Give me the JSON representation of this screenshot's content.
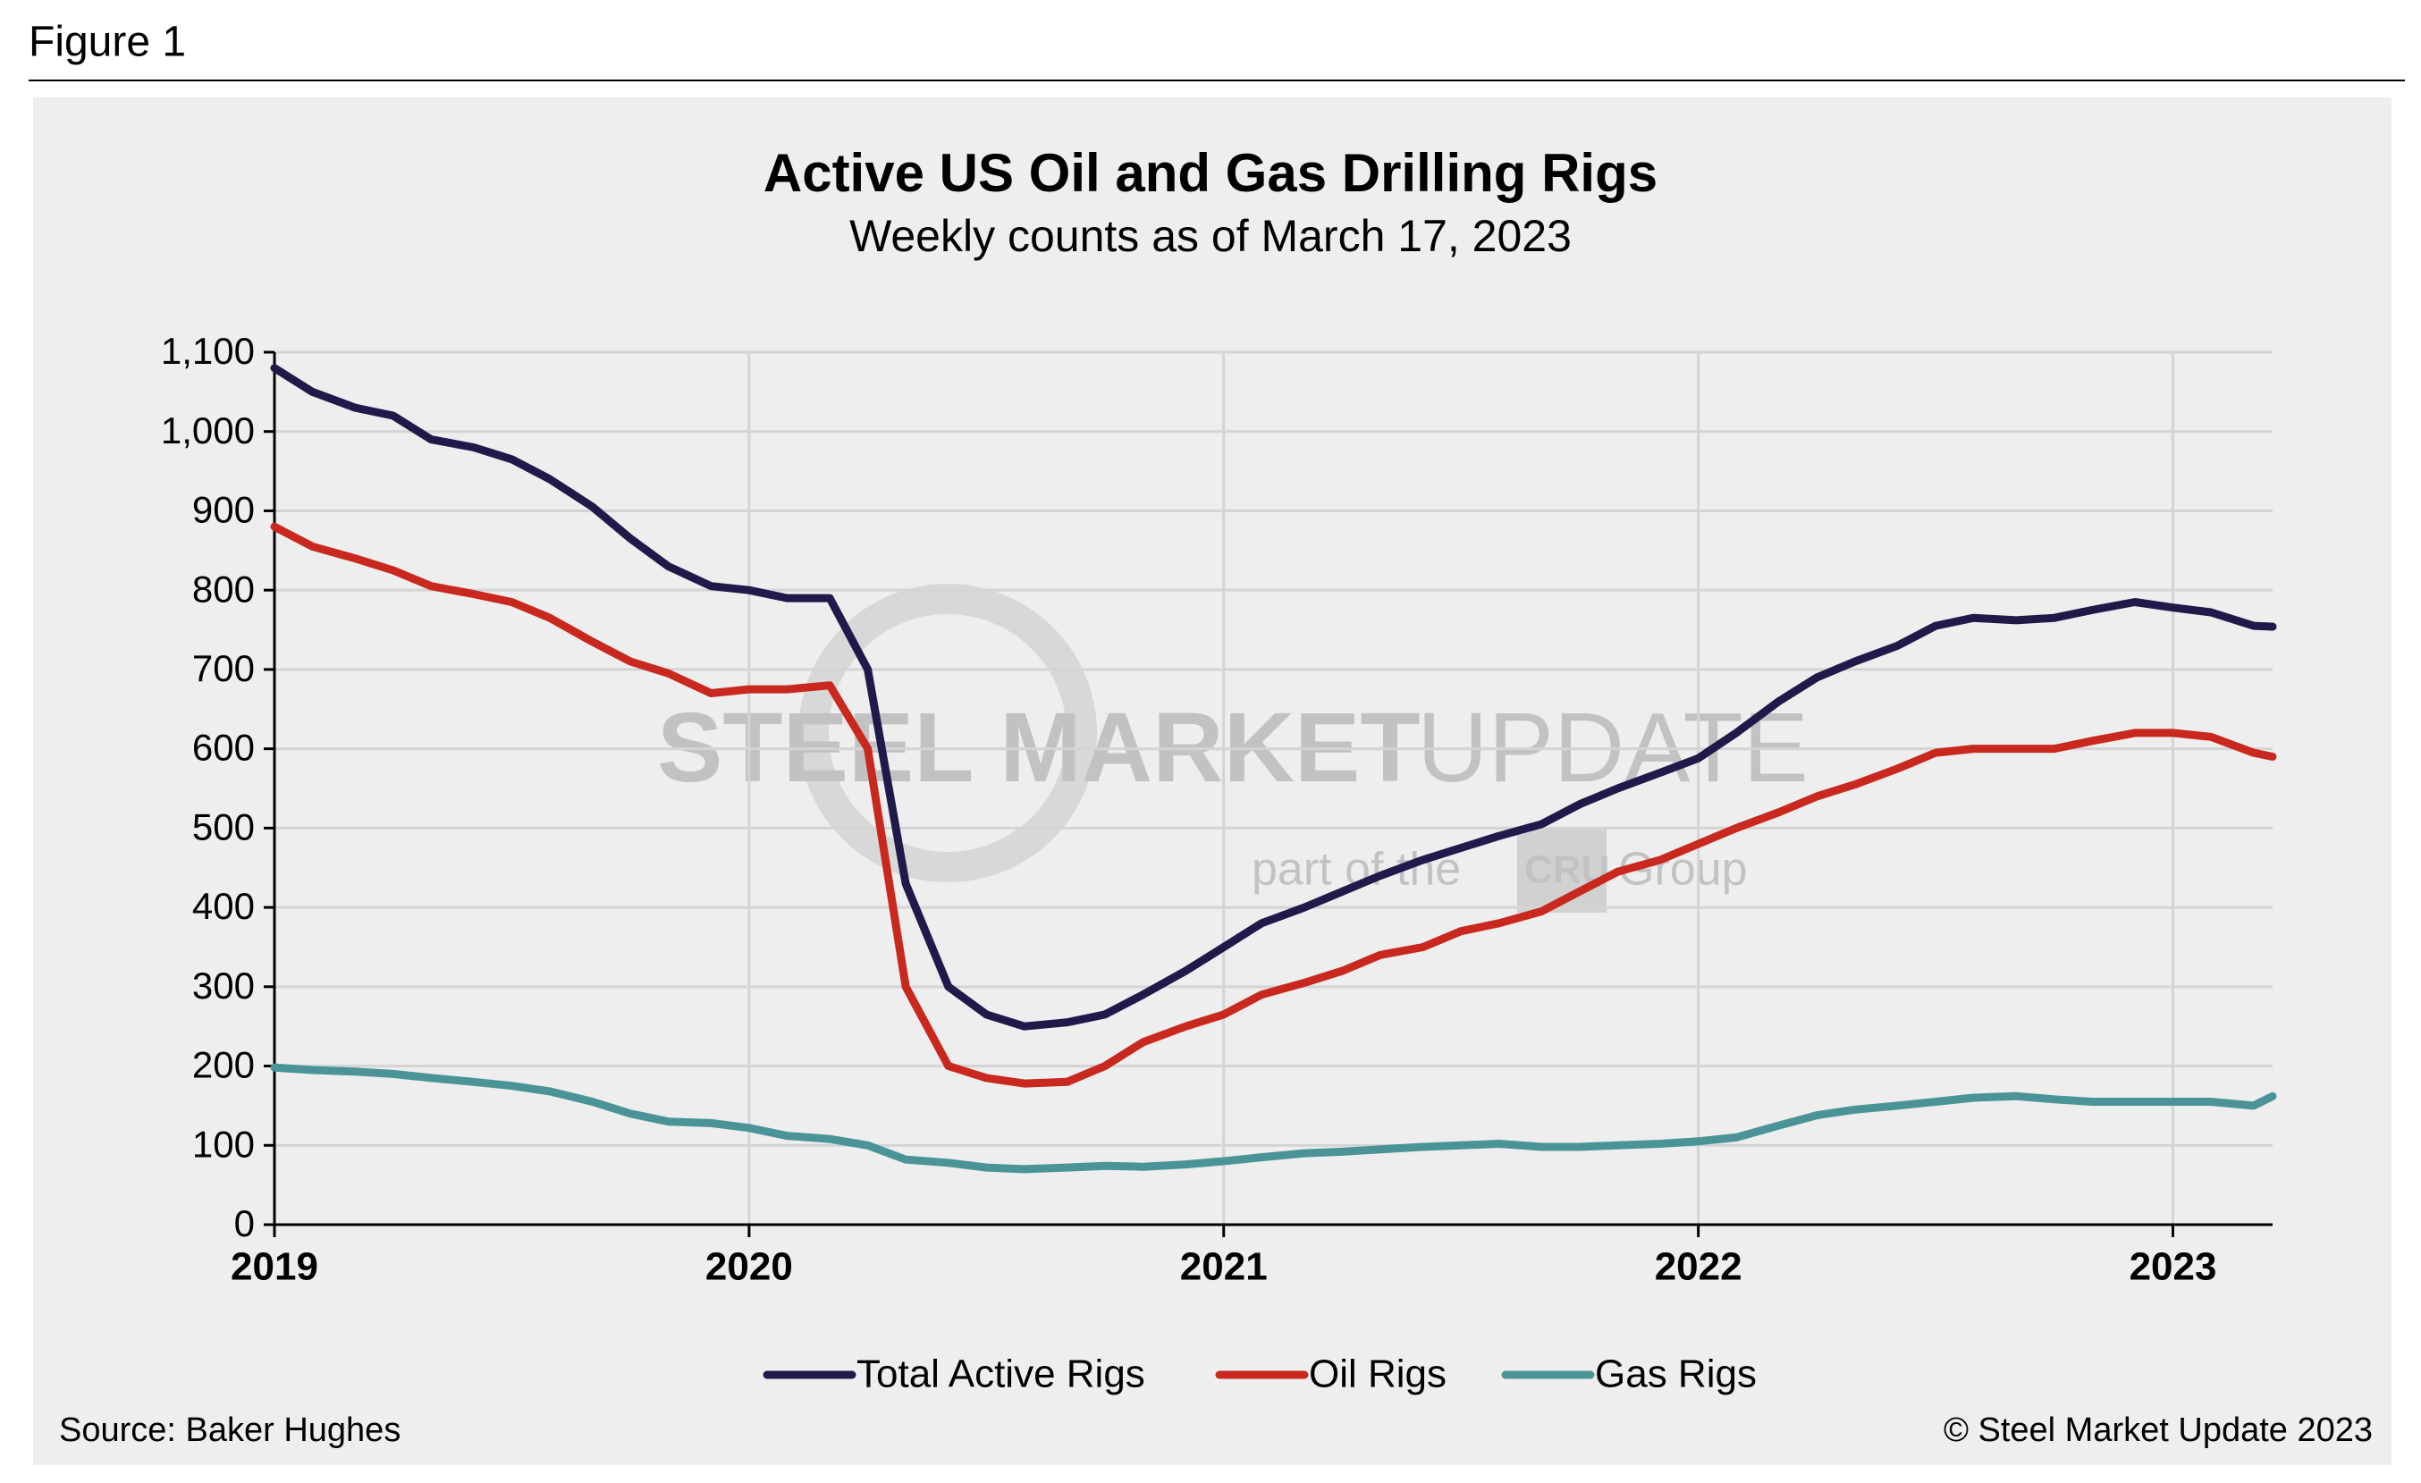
{
  "figure_label": "Figure 1",
  "chart_data": {
    "type": "line",
    "title": "Active US Oil and Gas Drilling Rigs",
    "subtitle": "Weekly counts as of March 17, 2023",
    "x": [
      2019,
      2019.08,
      2019.17,
      2019.25,
      2019.33,
      2019.42,
      2019.5,
      2019.58,
      2019.67,
      2019.75,
      2019.83,
      2019.92,
      2020,
      2020.08,
      2020.17,
      2020.25,
      2020.33,
      2020.42,
      2020.5,
      2020.58,
      2020.67,
      2020.75,
      2020.83,
      2020.92,
      2021,
      2021.08,
      2021.17,
      2021.25,
      2021.33,
      2021.42,
      2021.5,
      2021.58,
      2021.67,
      2021.75,
      2021.83,
      2021.92,
      2022,
      2022.08,
      2022.17,
      2022.25,
      2022.33,
      2022.42,
      2022.5,
      2022.58,
      2022.67,
      2022.75,
      2022.83,
      2022.92,
      2023,
      2023.08,
      2023.17,
      2023.21
    ],
    "series": [
      {
        "name": "Total Active Rigs",
        "color": "#1f1a4a",
        "values": [
          1080,
          1050,
          1030,
          1020,
          990,
          980,
          965,
          940,
          905,
          865,
          830,
          805,
          800,
          790,
          790,
          700,
          430,
          300,
          265,
          250,
          255,
          265,
          290,
          320,
          350,
          380,
          400,
          420,
          440,
          460,
          475,
          490,
          505,
          530,
          550,
          570,
          588,
          620,
          660,
          690,
          710,
          730,
          755,
          765,
          762,
          765,
          775,
          785,
          778,
          772,
          755,
          754
        ]
      },
      {
        "name": "Oil Rigs",
        "color": "#c8281e",
        "values": [
          880,
          855,
          840,
          825,
          805,
          795,
          785,
          765,
          735,
          710,
          695,
          670,
          675,
          675,
          680,
          600,
          300,
          200,
          185,
          178,
          180,
          200,
          230,
          250,
          265,
          290,
          305,
          320,
          340,
          350,
          370,
          380,
          395,
          420,
          445,
          460,
          480,
          500,
          520,
          540,
          555,
          575,
          595,
          600,
          600,
          600,
          610,
          620,
          620,
          615,
          595,
          590
        ]
      },
      {
        "name": "Gas Rigs",
        "color": "#4a9498",
        "values": [
          198,
          195,
          193,
          190,
          185,
          180,
          175,
          168,
          155,
          140,
          130,
          128,
          122,
          112,
          108,
          100,
          82,
          78,
          72,
          70,
          72,
          74,
          73,
          76,
          80,
          85,
          90,
          92,
          95,
          98,
          100,
          102,
          98,
          98,
          100,
          102,
          105,
          110,
          125,
          138,
          145,
          150,
          155,
          160,
          162,
          158,
          155,
          155,
          155,
          155,
          150,
          162
        ]
      }
    ],
    "xlim": [
      2019,
      2023.21
    ],
    "xticks": [
      2019,
      2020,
      2021,
      2022,
      2023
    ],
    "ylim": [
      0,
      1100
    ],
    "yticks": [
      0,
      100,
      200,
      300,
      400,
      500,
      600,
      700,
      800,
      900,
      {
        "value": 1000,
        "label": "1,000"
      },
      {
        "value": 1100,
        "label": "1,100"
      }
    ],
    "grid": true,
    "legend": "bottom",
    "source": "Source: Baker Hughes",
    "copyright": "© Steel Market Update 2023",
    "watermark": [
      "STEEL MARKET",
      "UPDATE",
      "part of the",
      "CRU",
      "Group"
    ]
  }
}
